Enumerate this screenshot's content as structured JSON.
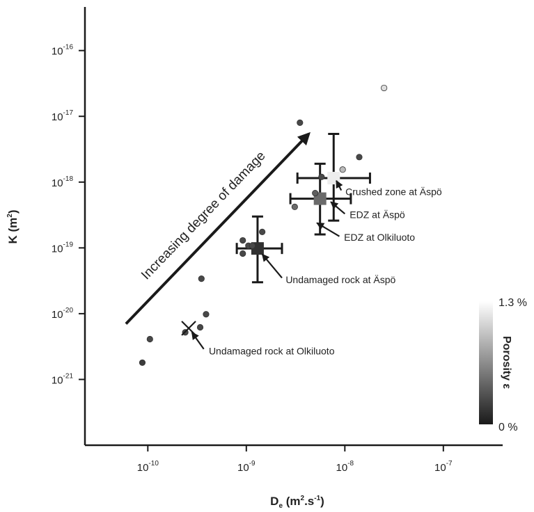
{
  "chart_data": {
    "type": "scatter",
    "xlabel": {
      "base": "D",
      "sub": "e",
      "pre": " (m",
      "sup": "2",
      "post": ".s",
      "sup2": "-1",
      "end": ")"
    },
    "ylabel": {
      "base": "K (m",
      "sup": "2",
      "end": ")"
    },
    "x_scale": "log",
    "y_scale": "log",
    "xlim": [
      2.3e-11,
      4e-07
    ],
    "ylim": [
      1e-22,
      4.6e-16
    ],
    "x_ticks": [
      {
        "value": 1e-10,
        "base": "10",
        "exp": "-10"
      },
      {
        "value": 1e-09,
        "base": "10",
        "exp": "-9"
      },
      {
        "value": 1e-08,
        "base": "10",
        "exp": "-8"
      },
      {
        "value": 1e-07,
        "base": "10",
        "exp": "-7"
      }
    ],
    "y_ticks": [
      {
        "value": 1e-21,
        "base": "10",
        "exp": "-21"
      },
      {
        "value": 1e-20,
        "base": "10",
        "exp": "-20"
      },
      {
        "value": 1e-19,
        "base": "10",
        "exp": "-19"
      },
      {
        "value": 1e-18,
        "base": "10",
        "exp": "-18"
      },
      {
        "value": 1e-17,
        "base": "10",
        "exp": "-17"
      },
      {
        "value": 1e-16,
        "base": "10",
        "exp": "-16"
      }
    ],
    "points": [
      {
        "x": 8.8e-11,
        "y": 1.8e-21,
        "porosity": 0.15
      },
      {
        "x": 1.05e-10,
        "y": 4.1e-21,
        "porosity": 0.2
      },
      {
        "x": 2.4e-10,
        "y": 5.2e-21,
        "porosity": 0.2
      },
      {
        "x": 3.4e-10,
        "y": 6.2e-21,
        "porosity": 0.2
      },
      {
        "x": 3.9e-10,
        "y": 9.8e-21,
        "porosity": 0.2
      },
      {
        "x": 3.5e-10,
        "y": 3.4e-20,
        "porosity": 0.2
      },
      {
        "x": 9.2e-10,
        "y": 8.2e-20,
        "porosity": 0.2
      },
      {
        "x": 9.2e-10,
        "y": 1.3e-19,
        "porosity": 0.2
      },
      {
        "x": 1.05e-09,
        "y": 1.08e-19,
        "porosity": 0.2
      },
      {
        "x": 1.15e-09,
        "y": 1.08e-19,
        "porosity": 0.2
      },
      {
        "x": 1.45e-09,
        "y": 1.75e-19,
        "porosity": 0.2
      },
      {
        "x": 3.1e-09,
        "y": 4.2e-19,
        "porosity": 0.35
      },
      {
        "x": 5e-09,
        "y": 6.8e-19,
        "porosity": 0.3
      },
      {
        "x": 5.8e-09,
        "y": 1.2e-18,
        "porosity": 0.2
      },
      {
        "x": 3.5e-09,
        "y": 8e-18,
        "porosity": 0.2
      },
      {
        "x": 9.5e-09,
        "y": 1.55e-18,
        "porosity": 0.7
      },
      {
        "x": 1.4e-08,
        "y": 2.4e-18,
        "porosity": 0.2
      },
      {
        "x": 2.5e-08,
        "y": 2.7e-17,
        "porosity": 0.85
      }
    ],
    "error_groups": [
      {
        "x": 1.3e-09,
        "y": 9.8e-20,
        "xerr": [
          8e-10,
          2.3e-09
        ],
        "yerr": [
          3e-20,
          3e-19
        ],
        "porosity": 0.1
      },
      {
        "x": 5.6e-09,
        "y": 5.6e-19,
        "xerr": [
          2.8e-09,
          1.15e-08
        ],
        "yerr": [
          1.6e-19,
          1.9e-18
        ],
        "porosity": 0.35
      },
      {
        "x": 7.7e-09,
        "y": 1.15e-18,
        "xerr": [
          3.3e-09,
          1.8e-08
        ],
        "yerr": [
          2.6e-19,
          5.4e-18
        ],
        "porosity": 0.92
      }
    ],
    "cross_marker": {
      "x": 2.6e-10,
      "y": 6e-21
    },
    "annotations": [
      {
        "text": "Crushed zone at Äspö",
        "text_x": 9.5e-09,
        "text_y": 7.2e-19,
        "arrow_from": [
          9.2e-09,
          7.5e-19
        ],
        "arrow_to": [
          8.2e-09,
          1.05e-18
        ]
      },
      {
        "text": "EDZ at Äspö",
        "text_x": 1.05e-08,
        "text_y": 3.2e-19,
        "arrow_from": [
          1e-08,
          3.3e-19
        ],
        "arrow_to": [
          7.2e-09,
          5e-19
        ]
      },
      {
        "text": "EDZ at Olkiluoto",
        "text_x": 9.2e-09,
        "text_y": 1.45e-19,
        "arrow_from": [
          8.8e-09,
          1.5e-19
        ],
        "arrow_to": [
          5.2e-09,
          2.4e-19
        ]
      },
      {
        "text": "Undamaged rock at Äspö",
        "text_x": 2.35e-09,
        "text_y": 3.3e-20,
        "arrow_from": [
          2.3e-09,
          3.5e-20
        ],
        "arrow_to": [
          1.45e-09,
          8e-20
        ]
      },
      {
        "text": "Undamaged rock at Olkiluoto",
        "text_x": 3.9e-10,
        "text_y": 2.7e-21,
        "arrow_from": [
          3.7e-10,
          2.9e-21
        ],
        "arrow_to": [
          2.8e-10,
          5.2e-21
        ]
      }
    ],
    "damage_arrow": {
      "text": "Increasing degree of damage",
      "from": [
        6e-11,
        7e-21
      ],
      "to": [
        4.3e-09,
        5.4e-18
      ]
    },
    "colorbar": {
      "label": "Porosity ε",
      "min_label": "0 %",
      "max_label": "1.3 %",
      "min_value": 0,
      "max_value": 1.3,
      "min_color": "#1a1a1a",
      "max_color": "#ffffff"
    },
    "grid": false,
    "legend": "none"
  }
}
